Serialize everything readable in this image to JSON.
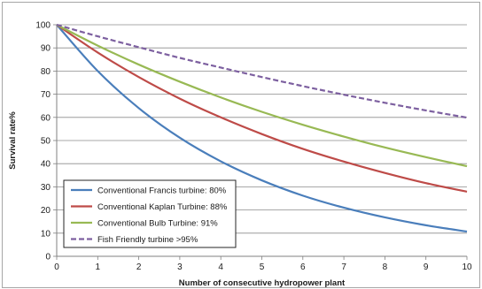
{
  "chart_data": {
    "type": "line",
    "xlabel": "Number of consecutive hydropower plant",
    "ylabel": "Survival rate%",
    "xlim": [
      0,
      10
    ],
    "ylim": [
      0,
      100
    ],
    "x_ticks": [
      0,
      1,
      2,
      3,
      4,
      5,
      6,
      7,
      8,
      9,
      10
    ],
    "y_ticks": [
      0,
      10,
      20,
      30,
      40,
      50,
      60,
      70,
      80,
      90,
      100
    ],
    "grid": "horizontal",
    "legend_position": "bottom-left",
    "x": [
      0,
      1,
      2,
      3,
      4,
      5,
      6,
      7,
      8,
      9,
      10
    ],
    "series": [
      {
        "name": "Conventional Francis turbine: 80%",
        "color": "#4a7ebb",
        "dash": "solid",
        "values": [
          100,
          80,
          64,
          51.2,
          41,
          32.8,
          26.2,
          21,
          16.8,
          13.4,
          10.7
        ]
      },
      {
        "name": "Conventional Kaplan Turbine: 88%",
        "color": "#be4b48",
        "dash": "solid",
        "values": [
          100,
          88,
          77.4,
          68.1,
          60,
          52.8,
          46.4,
          40.9,
          36,
          31.6,
          27.9
        ]
      },
      {
        "name": "Conventional Bulb Turbine: 91%",
        "color": "#98b954",
        "dash": "solid",
        "values": [
          100,
          91,
          82.8,
          75.4,
          68.6,
          62.4,
          56.8,
          51.7,
          47,
          42.8,
          38.9
        ]
      },
      {
        "name": "Fish Friendly turbine >95%",
        "color": "#7d60a0",
        "dash": "dashed",
        "values": [
          100,
          95,
          90.3,
          85.7,
          81.5,
          77.4,
          73.5,
          69.8,
          66.3,
          63,
          59.9
        ]
      }
    ]
  }
}
